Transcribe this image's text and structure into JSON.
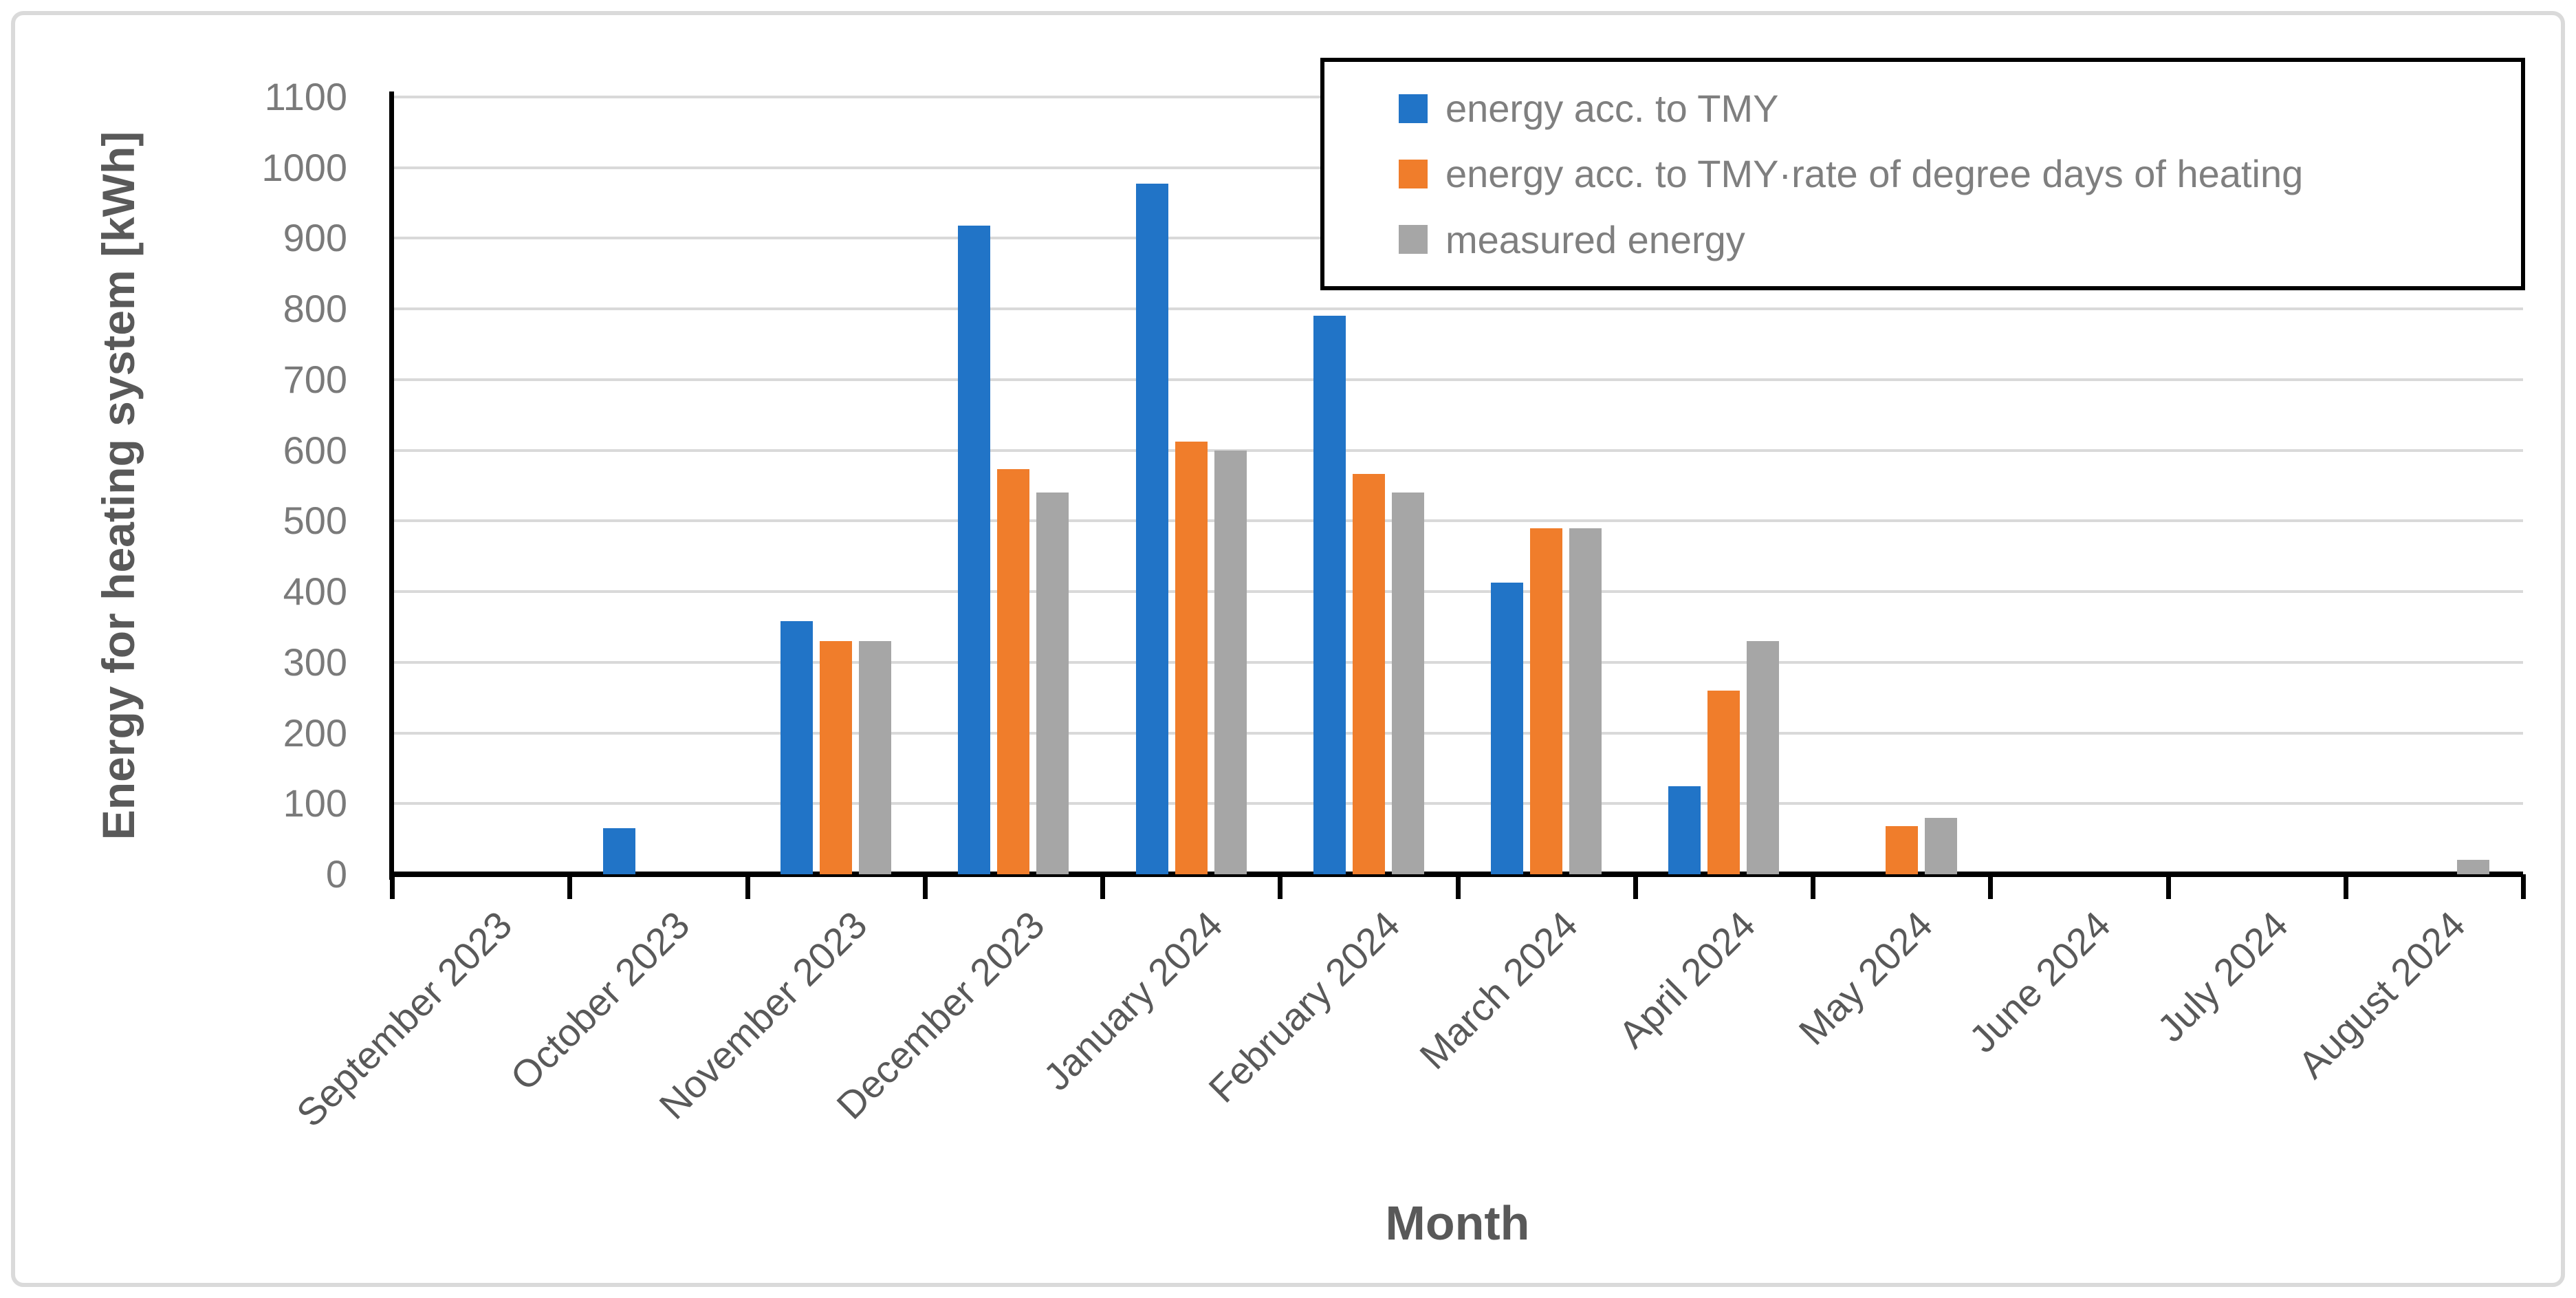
{
  "figure": {
    "background": "#ffffff",
    "border_color": "#dadada"
  },
  "chart_data": {
    "type": "bar",
    "title": "",
    "xlabel": "Month",
    "ylabel": "Energy for heating system [kWh]",
    "ylim": [
      0,
      1100
    ],
    "ytick_step": 100,
    "ytick_labels": [
      "0",
      "100",
      "200",
      "300",
      "400",
      "500",
      "600",
      "700",
      "800",
      "900",
      "1000",
      "1100"
    ],
    "grid": "horizontal",
    "grid_color": "#d9d9d9",
    "axis_color": "#000000",
    "legend_position": "top-right",
    "legend_border_color": "#000000",
    "categories": [
      "September 2023",
      "October 2023",
      "November 2023",
      "December 2023",
      "January 2024",
      "February 2024",
      "March 2024",
      "April 2024",
      "May 2024",
      "June 2024",
      "July 2024",
      "August 2024"
    ],
    "series": [
      {
        "name": "energy acc. to TMY",
        "color": "#2174c7",
        "values": [
          0,
          65,
          358,
          918,
          977,
          790,
          413,
          125,
          0,
          0,
          0,
          0
        ]
      },
      {
        "name": "energy acc. to TMY·rate of degree days of heating",
        "color": "#f07d2b",
        "values": [
          0,
          0,
          330,
          573,
          612,
          567,
          490,
          260,
          68,
          0,
          0,
          0
        ]
      },
      {
        "name": "measured energy",
        "color": "#a6a6a6",
        "values": [
          0,
          0,
          330,
          540,
          600,
          540,
          490,
          330,
          80,
          0,
          0,
          20
        ]
      }
    ]
  }
}
